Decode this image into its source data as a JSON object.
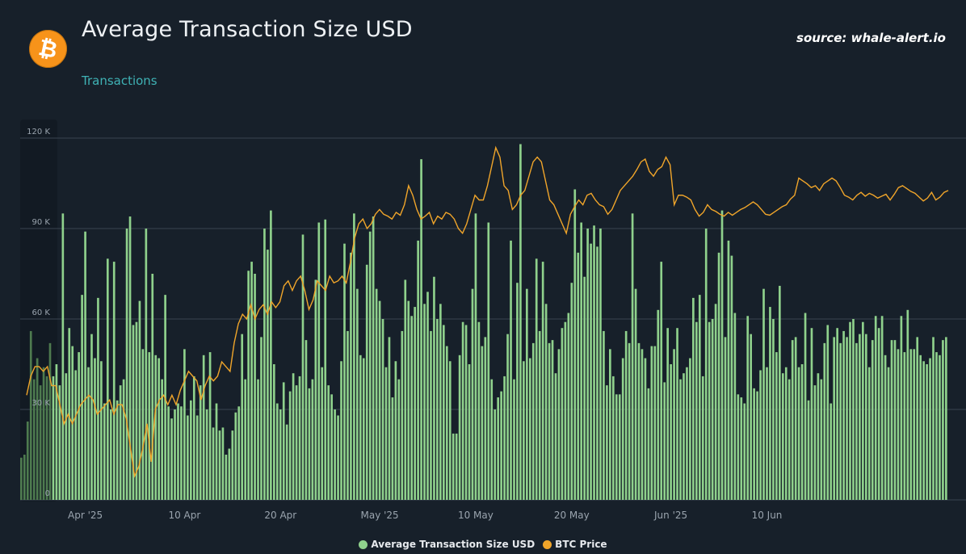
{
  "header": {
    "title": "Average Transaction Size USD",
    "subtitle": "Transactions",
    "source": "source: whale-alert.io",
    "logo_glyph": "₿",
    "logo_icon": "bitcoin-icon"
  },
  "colors": {
    "background": "#17202a",
    "bars": "#8fd18c",
    "bars_dim": "#4e7b4f",
    "line": "#f0a52a",
    "grid": "#3a4450",
    "tick": "#9aa4ae"
  },
  "legend": [
    {
      "label": "Average Transaction Size USD",
      "color": "#8fd18c"
    },
    {
      "label": "BTC Price",
      "color": "#f0a52a"
    }
  ],
  "chart_data": {
    "type": "bar",
    "title": "Average Transaction Size USD",
    "y_axis": {
      "ylim": [
        0,
        120000
      ],
      "ticks": [
        "0",
        "30 K",
        "60 K",
        "90 K",
        "120 K"
      ],
      "tick_values": [
        0,
        30000,
        60000,
        90000,
        120000
      ]
    },
    "x_axis": {
      "tick_labels": [
        "Apr '25",
        "10 Apr",
        "20 Apr",
        "May '25",
        "10 May",
        "20 May",
        "Jun '25",
        "10 Jun"
      ],
      "tick_indices": [
        20,
        51,
        81,
        112,
        142,
        172,
        203,
        233
      ]
    },
    "grid": true,
    "legend_position": "bottom-center",
    "series": [
      {
        "name": "Average Transaction Size USD",
        "type": "bar",
        "values": [
          14000,
          15000,
          26000,
          56000,
          40000,
          47000,
          38000,
          44000,
          41000,
          52000,
          41000,
          45000,
          38000,
          95000,
          42000,
          57000,
          51000,
          43000,
          49000,
          68000,
          89000,
          44000,
          55000,
          47000,
          67000,
          46000,
          32000,
          80000,
          30000,
          79000,
          33000,
          38000,
          40000,
          90000,
          94000,
          58000,
          59000,
          66000,
          50000,
          90000,
          49000,
          75000,
          48000,
          47000,
          40000,
          68000,
          31000,
          27000,
          30000,
          32000,
          31000,
          50000,
          28000,
          33000,
          41000,
          28000,
          38000,
          48000,
          30000,
          49000,
          24000,
          32000,
          23000,
          24000,
          15000,
          17000,
          23000,
          29000,
          31000,
          55000,
          40000,
          76000,
          79000,
          75000,
          40000,
          54000,
          90000,
          83000,
          96000,
          45000,
          32000,
          30000,
          39000,
          25000,
          36000,
          42000,
          38000,
          41000,
          88000,
          53000,
          37000,
          40000,
          73000,
          92000,
          44000,
          93000,
          38000,
          35000,
          30000,
          28000,
          46000,
          85000,
          56000,
          82000,
          95000,
          70000,
          48000,
          47000,
          78000,
          89000,
          94000,
          70000,
          66000,
          60000,
          44000,
          54000,
          34000,
          46000,
          40000,
          56000,
          73000,
          66000,
          61000,
          64000,
          86000,
          113000,
          65000,
          69000,
          56000,
          74000,
          60000,
          65000,
          58000,
          51000,
          46000,
          22000,
          22000,
          48000,
          59000,
          58000,
          45000,
          70000,
          95000,
          59000,
          51000,
          54000,
          92000,
          40000,
          30000,
          34000,
          36000,
          41000,
          55000,
          86000,
          40000,
          72000,
          118000,
          46000,
          70000,
          47000,
          52000,
          80000,
          56000,
          79000,
          65000,
          52000,
          53000,
          42000,
          50000,
          57000,
          59000,
          62000,
          72000,
          103000,
          82000,
          92000,
          74000,
          90000,
          85000,
          91000,
          84000,
          90000,
          56000,
          38000,
          50000,
          41000,
          35000,
          35000,
          47000,
          56000,
          52000,
          95000,
          70000,
          52000,
          50000,
          47000,
          37000,
          51000,
          51000,
          63000,
          79000,
          39000,
          57000,
          45000,
          50000,
          57000,
          40000,
          42000,
          44000,
          47000,
          67000,
          59000,
          68000,
          41000,
          90000,
          59000,
          60000,
          65000,
          82000,
          96000,
          54000,
          86000,
          81000,
          62000,
          35000,
          34000,
          32000,
          61000,
          55000,
          37000,
          36000,
          43000,
          70000,
          44000,
          64000,
          60000,
          49000,
          71000,
          42000,
          44000,
          40000,
          53000,
          54000,
          44000,
          45000,
          62000,
          33000,
          57000,
          38000,
          42000,
          40000,
          52000,
          58000,
          32000,
          54000,
          57000,
          52000,
          56000,
          54000,
          59000,
          60000,
          52000,
          55000,
          59000,
          55000,
          44000,
          53000,
          61000,
          57000,
          61000,
          48000,
          44000,
          53000,
          53000,
          50000,
          61000,
          49000,
          63000,
          50000,
          50000,
          54000,
          48000,
          46000,
          45000,
          47000,
          54000,
          49000,
          48000,
          53000,
          54000
        ]
      },
      {
        "name": "BTC Price",
        "type": "line",
        "values": [
          85000,
          87000,
          88000,
          88000,
          87500,
          88000,
          86000,
          86000,
          84000,
          82000,
          83000,
          82000,
          83000,
          84000,
          84500,
          85000,
          84500,
          83000,
          83500,
          84000,
          84500,
          83000,
          84000,
          84000,
          82500,
          79500,
          76500,
          77500,
          79500,
          82000,
          78000,
          83500,
          84500,
          85000,
          84000,
          85000,
          84000,
          85500,
          86500,
          87500,
          87000,
          86500,
          84500,
          86000,
          87000,
          86500,
          87000,
          88500,
          88000,
          87500,
          90500,
          92500,
          93500,
          93000,
          94500,
          93000,
          94000,
          94500,
          93500,
          94800,
          94200,
          94800,
          96500,
          97000,
          96000,
          97000,
          97500,
          96000,
          94000,
          95000,
          97000,
          96500,
          96000,
          97500,
          96800,
          97000,
          97500,
          96800,
          99000,
          101500,
          103000,
          103500,
          102500,
          103000,
          104000,
          104500,
          104000,
          103800,
          103500,
          104200,
          103900,
          105000,
          107000,
          106000,
          104500,
          103500,
          103800,
          104200,
          103000,
          103800,
          103500,
          104200,
          104000,
          103500,
          102500,
          102000,
          103000,
          104500,
          106000,
          105500,
          105500,
          107000,
          109000,
          111000,
          110000,
          107000,
          106500,
          104500,
          105000,
          106000,
          106500,
          108000,
          109500,
          110000,
          109500,
          107500,
          105500,
          105000,
          104000,
          103000,
          102000,
          104000,
          104800,
          105500,
          105000,
          106000,
          106200,
          105500,
          105000,
          104800,
          104000,
          104500,
          105500,
          106500,
          107000,
          107500,
          108000,
          108700,
          109500,
          109800,
          108500,
          108000,
          108700,
          109000,
          110000,
          109200,
          105000,
          106000,
          106000,
          105800,
          105500,
          104500,
          103800,
          104200,
          105000,
          104500,
          104300,
          104000,
          103800,
          104200,
          103900,
          104200,
          104500,
          104700,
          105000,
          105300,
          105000,
          104500,
          104000,
          103900,
          104200,
          104500,
          104800,
          105000,
          105600,
          106000,
          107800,
          107500,
          107200,
          106800,
          107000,
          106500,
          107200,
          107500,
          107800,
          107500,
          106800,
          106000,
          105800,
          105500,
          106000,
          106300,
          105900,
          106200,
          106000,
          105700,
          105900,
          106100,
          105500,
          106100,
          106800,
          107000,
          106700,
          106400,
          106200,
          105800,
          105400,
          105700,
          106300,
          105500,
          105800,
          106300,
          106500
        ]
      }
    ]
  },
  "price_plot": {
    "y_range": [
      74000,
      112000
    ]
  }
}
